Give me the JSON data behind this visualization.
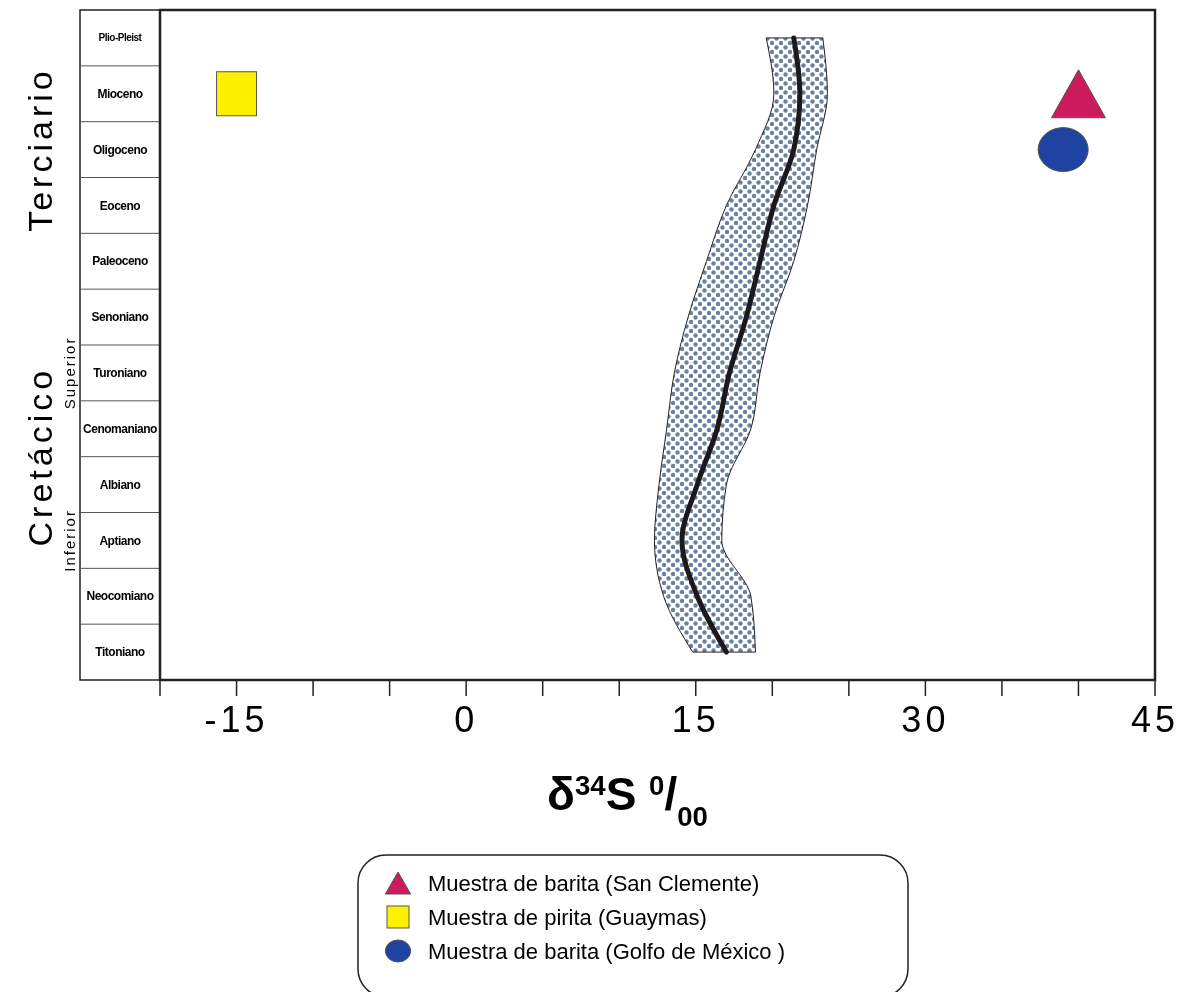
{
  "chart_data": {
    "type": "line",
    "orientation": "horizontal",
    "xlabel": "δ$^{34}$S $^{0}$/$_{00}$",
    "categories": [
      "Plio-Pleist",
      "Mioceno",
      "Oligoceno",
      "Eoceno",
      "Paleoceno",
      "Senoniano",
      "Turoniano",
      "Cenomaniano",
      "Albiano",
      "Aptiano",
      "Neocomiano",
      "Titoniano"
    ],
    "xlim": [
      -20,
      45
    ],
    "xticks": [
      {
        "value": -20,
        "label": null
      },
      -15,
      {
        "value": -10,
        "label": null
      },
      {
        "value": -5,
        "label": null
      },
      0,
      {
        "value": 5,
        "label": null
      },
      {
        "value": 10,
        "label": null
      },
      15,
      {
        "value": 20,
        "label": null
      },
      {
        "value": 25,
        "label": null
      },
      30,
      {
        "value": 35,
        "label": null
      },
      {
        "value": 40,
        "label": null
      },
      45
    ],
    "series": [
      {
        "color": "#1a1a1a",
        "values": [
          21.4,
          21.8,
          21.4,
          20.1,
          19.2,
          18.3,
          17.2,
          16.4,
          15.1,
          14.1,
          15.1,
          17
        ],
        "lower": [
          19.6,
          20.1,
          18.9,
          17,
          15.7,
          14.5,
          13.6,
          13.1,
          12.6,
          12.3,
          12.9,
          14.8
        ],
        "upper": [
          23.3,
          23.6,
          22.9,
          22.3,
          21.4,
          20.1,
          19.2,
          18.6,
          17,
          16.7,
          18.6,
          18.9
        ]
      },
      {
        "type": "scatter",
        "name": "Muestra de barita  (San Clemente)",
        "color": "#cc1a5c",
        "marker": "triangle",
        "values": [
          null,
          40,
          null,
          null,
          null,
          null,
          null,
          null,
          null,
          null,
          null,
          null
        ]
      },
      {
        "type": "scatter",
        "name": "Muestra de pirita (Guaymas)",
        "color": "#fff200",
        "marker": "square",
        "values": [
          null,
          -15,
          null,
          null,
          null,
          null,
          null,
          null,
          null,
          null,
          null,
          null
        ]
      },
      {
        "type": "scatter",
        "name": "Muestra de barita  (Golfo de México )",
        "color": "#1f43a0",
        "marker": "circle",
        "values": [
          null,
          null,
          39,
          null,
          null,
          null,
          null,
          null,
          null,
          null,
          null,
          null
        ]
      }
    ],
    "annotations": [
      "Terciario",
      "Cretácico",
      "Superior",
      "Inferior"
    ],
    "legend": "bottom"
  }
}
